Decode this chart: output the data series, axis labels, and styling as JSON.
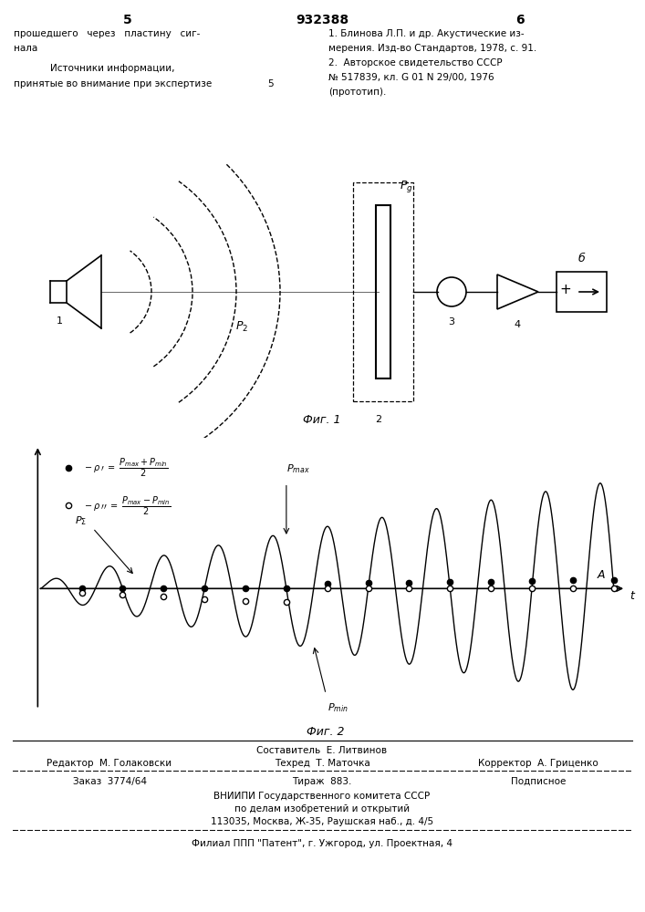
{
  "title": "932388",
  "page_left": "5",
  "page_right": "6",
  "text_left_1": "прошедшего   через   пластину   сиг-",
  "text_left_2": "нала",
  "text_sources": "Источники информации,",
  "text_sources2": "принятые во внимание при экспертизе",
  "text_num5": "5",
  "text_ref1": "1. Блинова Л.П. и др. Акустические из-",
  "text_ref2": "мерения. Изд-во Стандартов, 1978, с. 91.",
  "text_ref3": "2.  Авторское свидетельство СССР",
  "text_ref4": "№ 517839, кл. G 01 N 29/00, 1976",
  "text_ref5": "(прототип).",
  "fig1_label": "Фиг. 1",
  "fig2_label": "Фиг. 2",
  "footer1": "Составитель  Е. Литвинов",
  "footer2": "Редактор  М. Голаковски",
  "footer3": "Техред  Т. Маточка",
  "footer4": "Корректор  А. Гриценко",
  "footer5": "Заказ  3774/64",
  "footer6": "Тираж  883.",
  "footer7": "Подписное",
  "footer8": "ВНИИПИ Государственного комитета СССР",
  "footer9": "по делам изобретений и открытий",
  "footer10": "113035, Москва, Ж-35, Раушская наб., д. 4/5",
  "footer11": "Филиал ППП \"Патент\", г. Ужгород, ул. Проектная, 4",
  "bg_color": "#ffffff",
  "text_color": "#000000"
}
